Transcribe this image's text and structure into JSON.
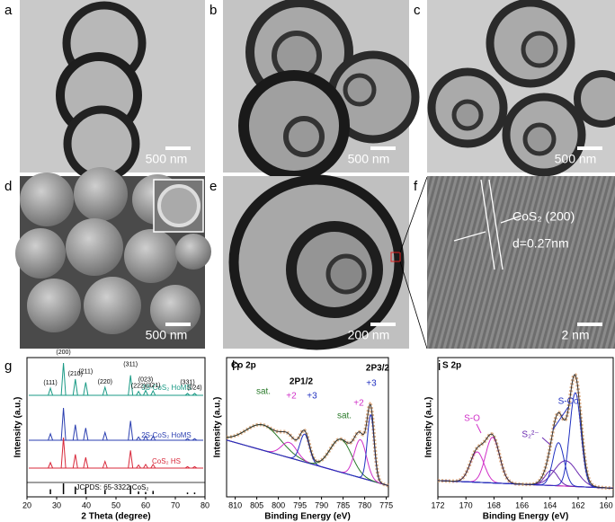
{
  "panels": [
    {
      "letter": "a",
      "scale": "500 nm"
    },
    {
      "letter": "b",
      "scale": "500 nm"
    },
    {
      "letter": "c",
      "scale": "500 nm"
    },
    {
      "letter": "d",
      "scale": "500 nm"
    },
    {
      "letter": "e",
      "scale": "200 nm"
    },
    {
      "letter": "f",
      "scale": "2 nm",
      "notes": [
        "CoS₂ (200)",
        "d=0.27nm"
      ]
    }
  ],
  "chart_data": [
    {
      "type": "xrd",
      "letter": "g",
      "xlabel": "2 Theta (degree)",
      "ylabel": "Intensity (a.u.)",
      "xlim": [
        20,
        80
      ],
      "xticks": [
        20,
        30,
        40,
        50,
        60,
        70,
        80
      ],
      "ylim": [
        0,
        100
      ],
      "peaks": [
        27.9,
        32.3,
        36.3,
        39.8,
        46.3,
        54.9,
        57.6,
        60.0,
        62.5,
        74.1,
        76.5
      ],
      "peak_labels": [
        "(111)",
        "(200)",
        "(210)",
        "(211)",
        "(220)",
        "(311)",
        "(222)",
        "(023)",
        "(321)",
        "(331)",
        "(024)"
      ],
      "series": [
        {
          "name": "3S-CoS₂ HoMS",
          "color": "#1a9a85",
          "values": [
            22,
            100,
            50,
            40,
            25,
            62,
            12,
            15,
            14,
            6,
            6
          ]
        },
        {
          "name": "2S-CoS₂ HoMS",
          "color": "#2a3eb0",
          "values": [
            20,
            100,
            48,
            38,
            24,
            60,
            10,
            13,
            12,
            5,
            5
          ]
        },
        {
          "name": "CoS₂ HS",
          "color": "#d8283a",
          "values": [
            18,
            100,
            45,
            35,
            22,
            58,
            10,
            12,
            12,
            5,
            5
          ]
        }
      ],
      "reference": {
        "name": "JCPDS: 65-3322 CoS₂",
        "color": "#000000",
        "values": [
          45,
          100,
          70,
          60,
          40,
          80,
          25,
          20,
          30,
          15,
          15
        ]
      }
    },
    {
      "type": "xps",
      "letter": "h",
      "title": "Co 2p",
      "xlabel": "Binding Energy (eV)",
      "ylabel": "Intensity (a.u.)",
      "xlim": [
        812,
        774.5
      ],
      "xticks": [
        810,
        805,
        800,
        795,
        790,
        785,
        780,
        775
      ],
      "ylim": [
        0,
        100
      ],
      "background": [
        42,
        6
      ],
      "components": [
        {
          "center": 803.5,
          "height": 20,
          "width": 4,
          "color": "#2a7a2a"
        },
        {
          "center": 797.5,
          "height": 12,
          "width": 1.8,
          "color": "#d030c8"
        },
        {
          "center": 793.9,
          "height": 22,
          "width": 1.1,
          "color": "#2030c0"
        },
        {
          "center": 785.5,
          "height": 26,
          "width": 2.5,
          "color": "#2a7a2a"
        },
        {
          "center": 781.0,
          "height": 30,
          "width": 1.4,
          "color": "#d030c8"
        },
        {
          "center": 778.6,
          "height": 52,
          "width": 0.8,
          "color": "#2030c0"
        }
      ],
      "annotations": [
        {
          "text": "sat.",
          "color": "#2a7a2a"
        },
        {
          "text": "+2",
          "color": "#d030c8"
        },
        {
          "text": "+3",
          "color": "#2030c0"
        },
        {
          "text": "2P1/2",
          "color": "#000000"
        },
        {
          "text": "sat.",
          "color": "#2a7a2a"
        },
        {
          "text": "+2",
          "color": "#d030c8"
        },
        {
          "text": "+3",
          "color": "#2030c0"
        },
        {
          "text": "2P3/2",
          "color": "#000000"
        }
      ]
    },
    {
      "type": "xps",
      "letter": "i",
      "title": "S 2p",
      "xlabel": "Binding Energy (eV)",
      "ylabel": "Intensity (a.u.)",
      "xlim": [
        172,
        159.5
      ],
      "xticks": [
        172,
        170,
        168,
        166,
        164,
        162,
        160
      ],
      "ylim": [
        0,
        100
      ],
      "background": [
        10,
        4
      ],
      "components": [
        {
          "center": 169.2,
          "height": 24,
          "width": 0.5,
          "color": "#d030c8"
        },
        {
          "center": 168.1,
          "height": 36,
          "width": 0.5,
          "color": "#d030c8"
        },
        {
          "center": 163.9,
          "height": 12,
          "width": 0.45,
          "color": "#6a2ab0"
        },
        {
          "center": 162.9,
          "height": 20,
          "width": 0.8,
          "color": "#6a2ab0"
        },
        {
          "center": 163.4,
          "height": 34,
          "width": 0.4,
          "color": "#2030c0"
        },
        {
          "center": 162.2,
          "height": 74,
          "width": 0.4,
          "color": "#2030c0"
        }
      ],
      "annotations": [
        {
          "text": "S-O",
          "color": "#d030c8"
        },
        {
          "text": "S₂²⁻",
          "color": "#6a2ab0"
        },
        {
          "text": "S-Co",
          "color": "#2030c0"
        }
      ]
    }
  ]
}
